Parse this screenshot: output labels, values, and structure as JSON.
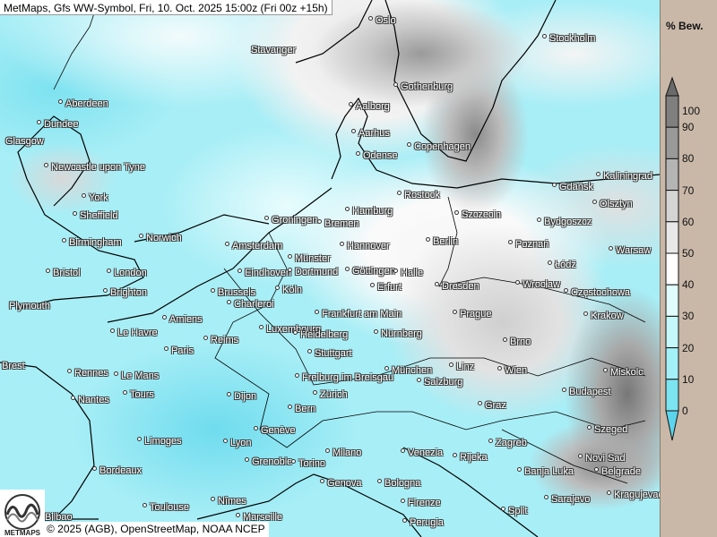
{
  "title": "MetMaps, Gfs WW-Symbol, Fri, 10. Oct. 2025 15:00z (Fri 00z +15h)",
  "credit": "© 2025 (AGB), OpenStreetMap, NOAA NCEP",
  "logo_text": "METMAPS",
  "legend": {
    "title": "% Bew.",
    "levels": [
      "100",
      "90",
      "80",
      "70",
      "60",
      "50",
      "40",
      "30",
      "20",
      "10",
      "0"
    ],
    "colors": [
      "#7f7f7f",
      "#999999",
      "#b4b4b4",
      "#d4d4d4",
      "#e8e8e8",
      "#ffffff",
      "#e0fcfc",
      "#c4f8fb",
      "#a4f0f8",
      "#7ce4f0"
    ],
    "over_color": "#6a6a6a",
    "under_color": "#5cd4ec"
  },
  "cities": [
    {
      "name": "Oslo"
    },
    {
      "name": "Stavanger"
    },
    {
      "name": "Stockholm"
    },
    {
      "name": "Gothenburg"
    },
    {
      "name": "Aberdeen"
    },
    {
      "name": "Dundee"
    },
    {
      "name": "Glasgow"
    },
    {
      "name": "Aalborg"
    },
    {
      "name": "Aarhus"
    },
    {
      "name": "Odense"
    },
    {
      "name": "Copenhagen"
    },
    {
      "name": "Newcastle upon Tyne"
    },
    {
      "name": "Rostock"
    },
    {
      "name": "Gdańsk"
    },
    {
      "name": "Kaliningrad"
    },
    {
      "name": "York"
    },
    {
      "name": "Olsztyn"
    },
    {
      "name": "Sheffield"
    },
    {
      "name": "Groningen"
    },
    {
      "name": "Bremen"
    },
    {
      "name": "Hamburg"
    },
    {
      "name": "Szczecin"
    },
    {
      "name": "Bydgoszcz"
    },
    {
      "name": "Birmingham"
    },
    {
      "name": "Norwich"
    },
    {
      "name": "Amsterdam"
    },
    {
      "name": "Hannover"
    },
    {
      "name": "Berlin"
    },
    {
      "name": "Poznań"
    },
    {
      "name": "Warsaw"
    },
    {
      "name": "Münster"
    },
    {
      "name": "Łódź"
    },
    {
      "name": "Bristol"
    },
    {
      "name": "London"
    },
    {
      "name": "Eindhoven"
    },
    {
      "name": "Dortmund"
    },
    {
      "name": "Göttingen"
    },
    {
      "name": "Halle"
    },
    {
      "name": "Wrocław"
    },
    {
      "name": "Częstochowa"
    },
    {
      "name": "Brighton"
    },
    {
      "name": "Brussels"
    },
    {
      "name": "Köln"
    },
    {
      "name": "Erfurt"
    },
    {
      "name": "Dresden"
    },
    {
      "name": "Plymouth"
    },
    {
      "name": "Charleroi"
    },
    {
      "name": "Frankfurt am Main"
    },
    {
      "name": "Prague"
    },
    {
      "name": "Krakow"
    },
    {
      "name": "Amiens"
    },
    {
      "name": "Luxembourg"
    },
    {
      "name": "Heidelberg"
    },
    {
      "name": "Nürnberg"
    },
    {
      "name": "Le Havre"
    },
    {
      "name": "Reims"
    },
    {
      "name": "Paris"
    },
    {
      "name": "Brno"
    },
    {
      "name": "Stuttgart"
    },
    {
      "name": "Brest"
    },
    {
      "name": "Rennes"
    },
    {
      "name": "Le Mans"
    },
    {
      "name": "Linz"
    },
    {
      "name": "Wien"
    },
    {
      "name": "Miskolc"
    },
    {
      "name": "Freiburg im Breisgau"
    },
    {
      "name": "München"
    },
    {
      "name": "Salzburg"
    },
    {
      "name": "Nantes"
    },
    {
      "name": "Tours"
    },
    {
      "name": "Dijon"
    },
    {
      "name": "Zürich"
    },
    {
      "name": "Budapest"
    },
    {
      "name": "Bern"
    },
    {
      "name": "Graz"
    },
    {
      "name": "Szeged"
    },
    {
      "name": "Genève"
    },
    {
      "name": "Limoges"
    },
    {
      "name": "Lyon"
    },
    {
      "name": "Zagreb"
    },
    {
      "name": "Novi Sad"
    },
    {
      "name": "Milano"
    },
    {
      "name": "Venezia"
    },
    {
      "name": "Rijeka"
    },
    {
      "name": "Bordeaux"
    },
    {
      "name": "Grenoble"
    },
    {
      "name": "Torino"
    },
    {
      "name": "Banja Luka"
    },
    {
      "name": "Belgrade"
    },
    {
      "name": "Genova"
    },
    {
      "name": "Bologna"
    },
    {
      "name": "Kragujevac"
    },
    {
      "name": "Sarajevo"
    },
    {
      "name": "Toulouse"
    },
    {
      "name": "Nîmes"
    },
    {
      "name": "Firenze"
    },
    {
      "name": "Marseille"
    },
    {
      "name": "Split"
    },
    {
      "name": "Perugia"
    },
    {
      "name": "Bilbao"
    }
  ]
}
